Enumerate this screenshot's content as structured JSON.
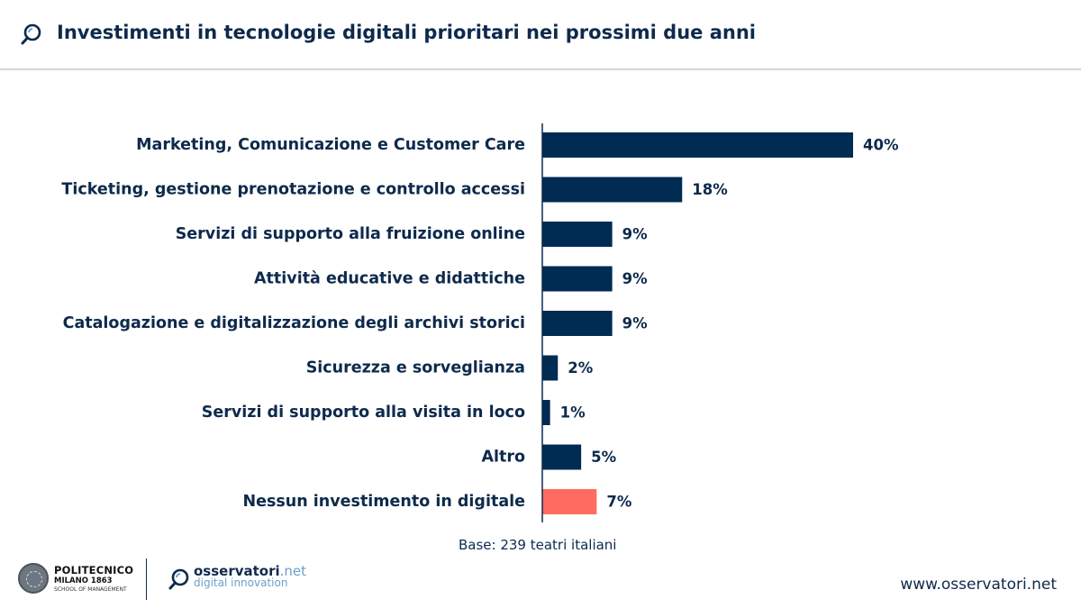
{
  "header": {
    "title": "Investimenti in tecnologie digitali prioritari nei prossimi due anni",
    "icon": "search-magnifier-icon"
  },
  "chart_data": {
    "type": "bar",
    "orientation": "horizontal",
    "title": "Investimenti in tecnologie digitali prioritari nei prossimi due anni",
    "categories": [
      "Marketing, Comunicazione e Customer Care",
      "Ticketing, gestione prenotazione e controllo accessi",
      "Servizi di supporto alla fruizione online",
      "Attività educative e didattiche",
      "Catalogazione e digitalizzazione degli archivi storici",
      "Sicurezza e sorveglianza",
      "Servizi di supporto alla visita in loco",
      "Altro",
      "Nessun investimento in digitale"
    ],
    "values": [
      40,
      18,
      9,
      9,
      9,
      2,
      1,
      5,
      7
    ],
    "value_labels": [
      "40%",
      "18%",
      "9%",
      "9%",
      "9%",
      "2%",
      "1%",
      "5%",
      "7%"
    ],
    "unit": "%",
    "colors": [
      "#002b52",
      "#002b52",
      "#002b52",
      "#002b52",
      "#002b52",
      "#002b52",
      "#002b52",
      "#002b52",
      "#ff6b60"
    ],
    "xlim": [
      0,
      40
    ],
    "xlabel": "",
    "ylabel": ""
  },
  "note": "Base: 239 teatri italiani",
  "footer": {
    "poli_name": "POLITECNICO",
    "poli_sub": "MILANO 1863",
    "poli_school": "SCHOOL OF MANAGEMENT",
    "oss_name": "osservatori",
    "oss_net": ".net",
    "oss_tag": "digital innovation",
    "website": "www.osservatori.net"
  },
  "colors": {
    "primary": "#0d2a4c",
    "bar": "#002b52",
    "highlight": "#ff6b60",
    "accent": "#6ca0c9"
  }
}
